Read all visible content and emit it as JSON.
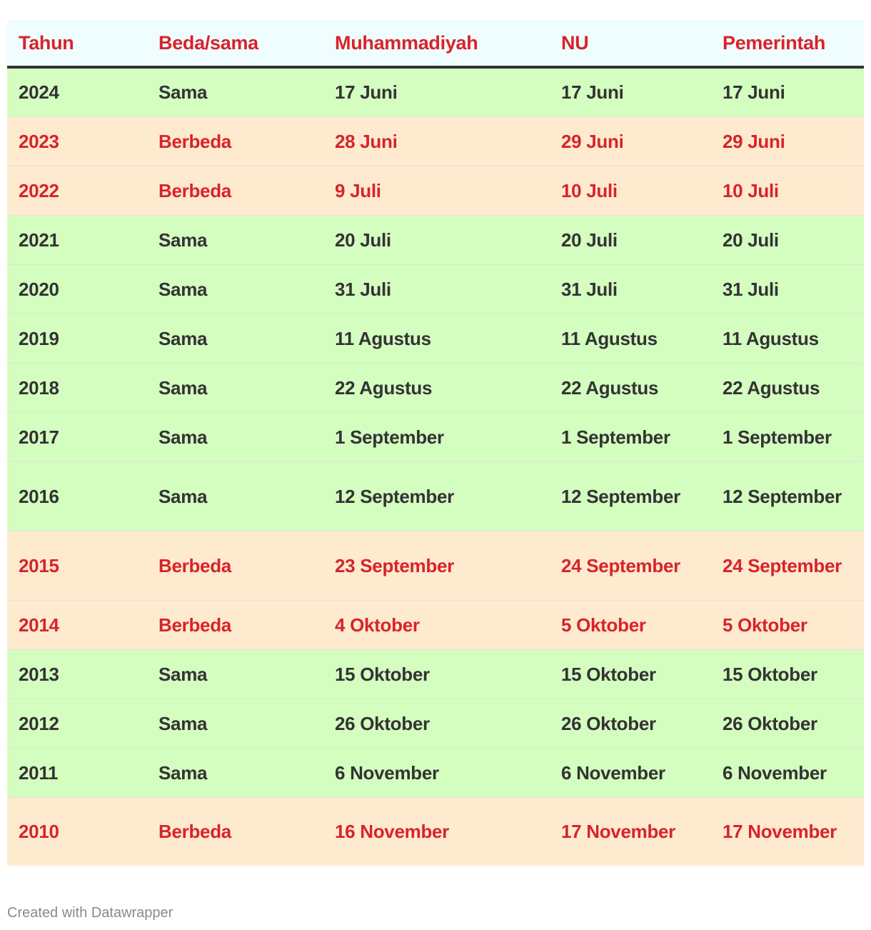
{
  "chart_data": {
    "type": "table",
    "columns": [
      "Tahun",
      "Beda/sama",
      "Muhammadiyah",
      "NU",
      "Pemerintah"
    ],
    "rows": [
      {
        "year": "2024",
        "status": "Sama",
        "muhammadiyah": "17 Juni",
        "nu": "17 Juni",
        "pemerintah": "17 Juni",
        "type": "same"
      },
      {
        "year": "2023",
        "status": "Berbeda",
        "muhammadiyah": "28 Juni",
        "nu": "29 Juni",
        "pemerintah": "29 Juni",
        "type": "diff"
      },
      {
        "year": "2022",
        "status": "Berbeda",
        "muhammadiyah": "9 Juli",
        "nu": "10 Juli",
        "pemerintah": "10 Juli",
        "type": "diff"
      },
      {
        "year": "2021",
        "status": "Sama",
        "muhammadiyah": "20 Juli",
        "nu": "20 Juli",
        "pemerintah": "20 Juli",
        "type": "same"
      },
      {
        "year": "2020",
        "status": "Sama",
        "muhammadiyah": "31 Juli",
        "nu": "31 Juli",
        "pemerintah": "31 Juli",
        "type": "same"
      },
      {
        "year": "2019",
        "status": "Sama",
        "muhammadiyah": "11 Agustus",
        "nu": "11 Agustus",
        "pemerintah": "11 Agustus",
        "type": "same"
      },
      {
        "year": "2018",
        "status": "Sama",
        "muhammadiyah": "22 Agustus",
        "nu": "22 Agustus",
        "pemerintah": "22 Agustus",
        "type": "same"
      },
      {
        "year": "2017",
        "status": "Sama",
        "muhammadiyah": "1 September",
        "nu": "1 September",
        "pemerintah": "1 September",
        "type": "same"
      },
      {
        "year": "2016",
        "status": "Sama",
        "muhammadiyah": "12 September",
        "nu": "12 September",
        "pemerintah": "12 September",
        "type": "same"
      },
      {
        "year": "2015",
        "status": "Berbeda",
        "muhammadiyah": "23 September",
        "nu": "24 September",
        "pemerintah": "24 September",
        "type": "diff"
      },
      {
        "year": "2014",
        "status": "Berbeda",
        "muhammadiyah": "4 Oktober",
        "nu": "5 Oktober",
        "pemerintah": "5 Oktober",
        "type": "diff"
      },
      {
        "year": "2013",
        "status": "Sama",
        "muhammadiyah": "15 Oktober",
        "nu": "15 Oktober",
        "pemerintah": "15 Oktober",
        "type": "same"
      },
      {
        "year": "2012",
        "status": "Sama",
        "muhammadiyah": "26 Oktober",
        "nu": "26 Oktober",
        "pemerintah": "26 Oktober",
        "type": "same"
      },
      {
        "year": "2011",
        "status": "Sama",
        "muhammadiyah": "6 November",
        "nu": "6 November",
        "pemerintah": "6 November",
        "type": "same"
      },
      {
        "year": "2010",
        "status": "Berbeda",
        "muhammadiyah": "16 November",
        "nu": "17 November",
        "pemerintah": "17 November",
        "type": "diff"
      }
    ],
    "colors": {
      "same_row": "#d4fdc0",
      "diff_row": "#feeacf",
      "same_text": "#333333",
      "diff_text": "#d8232a",
      "header_text": "#d8232a",
      "header_bg": "#f0fdff"
    }
  },
  "footer": {
    "credit": "Created with Datawrapper"
  }
}
